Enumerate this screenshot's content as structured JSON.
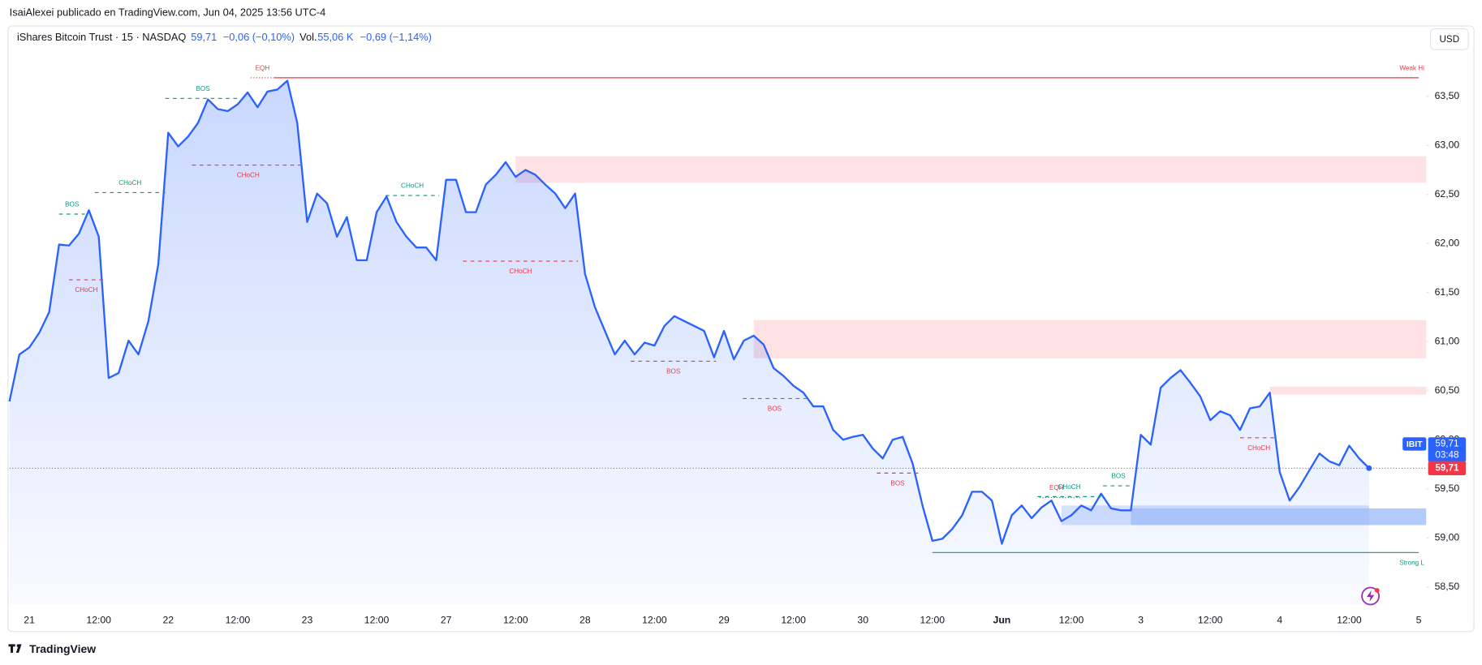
{
  "header": {
    "attribution": "IsaiAlexei publicado en TradingView.com, Jun 04, 2025 13:56 UTC-4",
    "brand": "TradingView",
    "currency": "USD"
  },
  "chart_data": {
    "type": "area",
    "title": "iShares Bitcoin Trust · 15 · NASDAQ",
    "legend": {
      "price": "59,71",
      "change": "−0,06 (−0,10%)",
      "volume_label": "Vol.",
      "volume": "55,06 K",
      "volume_change": "−0,69 (−1,14%)"
    },
    "color": "#2962ff",
    "grid": false,
    "categories": [
      null,
      null,
      "21",
      null,
      null,
      null,
      null,
      null,
      null,
      "12:00",
      null,
      null,
      null,
      null,
      null,
      null,
      "22",
      null,
      null,
      null,
      null,
      null,
      null,
      "12:00",
      null,
      null,
      null,
      null,
      null,
      null,
      "23",
      null,
      null,
      null,
      null,
      null,
      null,
      "12:00",
      null,
      null,
      null,
      null,
      null,
      null,
      "27",
      null,
      null,
      null,
      null,
      null,
      null,
      "12:00",
      null,
      null,
      null,
      null,
      null,
      null,
      "28",
      null,
      null,
      null,
      null,
      null,
      null,
      "12:00",
      null,
      null,
      null,
      null,
      null,
      null,
      "29",
      null,
      null,
      null,
      null,
      null,
      null,
      "12:00",
      null,
      null,
      null,
      null,
      null,
      null,
      "30",
      null,
      null,
      null,
      null,
      null,
      null,
      "12:00",
      null,
      null,
      null,
      null,
      null,
      null,
      "Jun",
      null,
      null,
      null,
      null,
      null,
      null,
      "12:00",
      null,
      null,
      null,
      null,
      null,
      null,
      "3",
      null,
      null,
      null,
      null,
      null,
      null,
      "12:00",
      null,
      null,
      null,
      null,
      null,
      null,
      "4",
      null,
      null,
      null,
      null,
      null,
      null,
      "12:00",
      null,
      null,
      null,
      null,
      null,
      null,
      "5"
    ],
    "values": [
      60.39,
      60.87,
      60.94,
      61.09,
      61.3,
      61.99,
      61.98,
      62.1,
      62.34,
      62.07,
      60.63,
      60.68,
      61.01,
      60.87,
      61.21,
      61.79,
      63.13,
      62.99,
      63.09,
      63.23,
      63.47,
      63.37,
      63.35,
      63.42,
      63.54,
      63.39,
      63.55,
      63.57,
      63.66,
      63.23,
      62.22,
      62.51,
      62.41,
      62.07,
      62.27,
      61.83,
      61.83,
      62.32,
      62.48,
      62.22,
      62.07,
      61.96,
      61.96,
      61.83,
      62.65,
      62.65,
      62.32,
      62.32,
      62.6,
      62.7,
      62.83,
      62.68,
      62.75,
      62.7,
      62.6,
      62.51,
      62.36,
      62.51,
      61.69,
      61.35,
      61.11,
      60.87,
      61.01,
      60.87,
      60.99,
      60.96,
      61.16,
      61.26,
      61.21,
      61.16,
      61.11,
      60.84,
      61.11,
      60.82,
      61.01,
      61.06,
      60.97,
      60.73,
      60.65,
      60.55,
      60.48,
      60.34,
      60.34,
      60.1,
      60.0,
      60.03,
      60.05,
      59.91,
      59.81,
      60.0,
      60.03,
      59.76,
      59.33,
      58.97,
      58.99,
      59.09,
      59.23,
      59.47,
      59.47,
      59.38,
      58.94,
      59.23,
      59.33,
      59.2,
      59.31,
      59.38,
      59.17,
      59.23,
      59.33,
      59.28,
      59.45,
      59.3,
      59.28,
      59.28,
      60.05,
      59.95,
      60.53,
      60.63,
      60.71,
      60.58,
      60.44,
      60.2,
      60.29,
      60.25,
      60.1,
      60.32,
      60.34,
      60.48,
      59.67,
      59.38,
      59.52,
      59.69,
      59.86,
      59.78,
      59.74,
      59.94,
      59.81,
      59.71,
      null,
      null,
      null,
      null,
      null
    ],
    "ylim": [
      58.32,
      64.29
    ],
    "yticks": [
      {
        "value": 58.5,
        "label": "58,50"
      },
      {
        "value": 59,
        "label": "59,00"
      },
      {
        "value": 59.5,
        "label": "59,50"
      },
      {
        "value": 60,
        "label": "60,00"
      },
      {
        "value": 60.5,
        "label": "60,50"
      },
      {
        "value": 61,
        "label": "61,00"
      },
      {
        "value": 61.5,
        "label": "61,50"
      },
      {
        "value": 62,
        "label": "62,00"
      },
      {
        "value": 62.5,
        "label": "62,50"
      },
      {
        "value": 63,
        "label": "63,00"
      },
      {
        "value": 63.5,
        "label": "63,50"
      }
    ],
    "last_price": {
      "value": 59.71,
      "label": "59,71"
    },
    "price_tag": {
      "symbol": "IBIT",
      "price": "59,71",
      "countdown": "03:48"
    },
    "zones": [
      {
        "top": 62.89,
        "bottom": 62.62,
        "from": 51,
        "to": 142,
        "color": "#fde1e3"
      },
      {
        "top": 61.22,
        "bottom": 60.83,
        "from": 75,
        "to": 142,
        "color": "#fde1e3"
      },
      {
        "top": 60.54,
        "bottom": 60.46,
        "from": 127,
        "to": 142,
        "color": "#fde1e3"
      },
      {
        "top": 59.33,
        "bottom": 59.13,
        "from": 106,
        "to": 137,
        "color": "#d6e2fd"
      },
      {
        "top": 59.3,
        "bottom": 59.13,
        "from": 113,
        "to": 142,
        "color": "#b3cbf9"
      }
    ],
    "annotations": [
      {
        "text": "BOS",
        "level": 62.3,
        "from": 5,
        "to": 7.6,
        "color": "#089981",
        "style": "dashed",
        "label": "above",
        "align": "middle"
      },
      {
        "text": "CHoCH",
        "level": 61.63,
        "from": 6,
        "to": 9.5,
        "color": "#f23645",
        "style": "dashed",
        "label": "below",
        "align": "middle"
      },
      {
        "text": "CHoCH",
        "level": 62.52,
        "from": 8.6,
        "to": 15.7,
        "color": "#089981",
        "style": "dashed",
        "label": "above",
        "align": "middle"
      },
      {
        "text": "BOS",
        "level": 63.48,
        "from": 15.7,
        "to": 23.3,
        "color": "#089981",
        "style": "dashed",
        "label": "above",
        "align": "middle"
      },
      {
        "text": "CHoCH",
        "level": 62.8,
        "from": 18.4,
        "to": 29.7,
        "color": "#f23645",
        "style": "dashed",
        "label": "below",
        "align": "middle"
      },
      {
        "text": "EQH",
        "level": 63.69,
        "from": 24.3,
        "to": 26.7,
        "color": "#f23645",
        "style": "dotted",
        "label": "above",
        "align": "middle"
      },
      {
        "text": "Weak Hi",
        "level": 63.69,
        "from": 26.7,
        "to": 142,
        "color": "#f23645",
        "style": "solid",
        "label": "above",
        "align": "end"
      },
      {
        "text": "CHoCH",
        "level": 62.49,
        "from": 37.9,
        "to": 43.3,
        "color": "#089981",
        "style": "dashed",
        "label": "above",
        "align": "middle"
      },
      {
        "text": "CHoCH",
        "level": 61.82,
        "from": 45.7,
        "to": 57.3,
        "color": "#f23645",
        "style": "dashed",
        "label": "below",
        "align": "middle"
      },
      {
        "text": "BOS",
        "level": 60.8,
        "from": 62.6,
        "to": 71.2,
        "color": "#f23645",
        "style": "dashed",
        "label": "below",
        "align": "middle"
      },
      {
        "text": "BOS",
        "level": 60.42,
        "from": 73.9,
        "to": 80.3,
        "color": "#f23645",
        "style": "dashed",
        "label": "below",
        "align": "middle"
      },
      {
        "text": "BOS",
        "level": 59.66,
        "from": 87.4,
        "to": 91.6,
        "color": "#f23645",
        "style": "dashed",
        "label": "below",
        "align": "middle"
      },
      {
        "text": "CHoCH",
        "level": 59.42,
        "from": 103.6,
        "to": 110,
        "color": "#089981",
        "style": "dashed",
        "label": "above",
        "align": "middle"
      },
      {
        "text": "EQH",
        "level": 59.41,
        "from": 103.8,
        "to": 108.1,
        "color": "#f23645",
        "style": "dotted",
        "label": "above",
        "align": "start"
      },
      {
        "text": "BOS",
        "level": 59.53,
        "from": 110.2,
        "to": 113.3,
        "color": "#089981",
        "style": "dashed",
        "label": "above",
        "align": "middle"
      },
      {
        "text": "CHoCH",
        "level": 60.02,
        "from": 124,
        "to": 127.8,
        "color": "#f23645",
        "style": "dashed",
        "label": "below",
        "align": "middle"
      },
      {
        "text": "Strong L",
        "level": 58.85,
        "from": 93,
        "to": 142,
        "color": "#089981",
        "style": "solid",
        "label": "below",
        "align": "end"
      }
    ]
  }
}
